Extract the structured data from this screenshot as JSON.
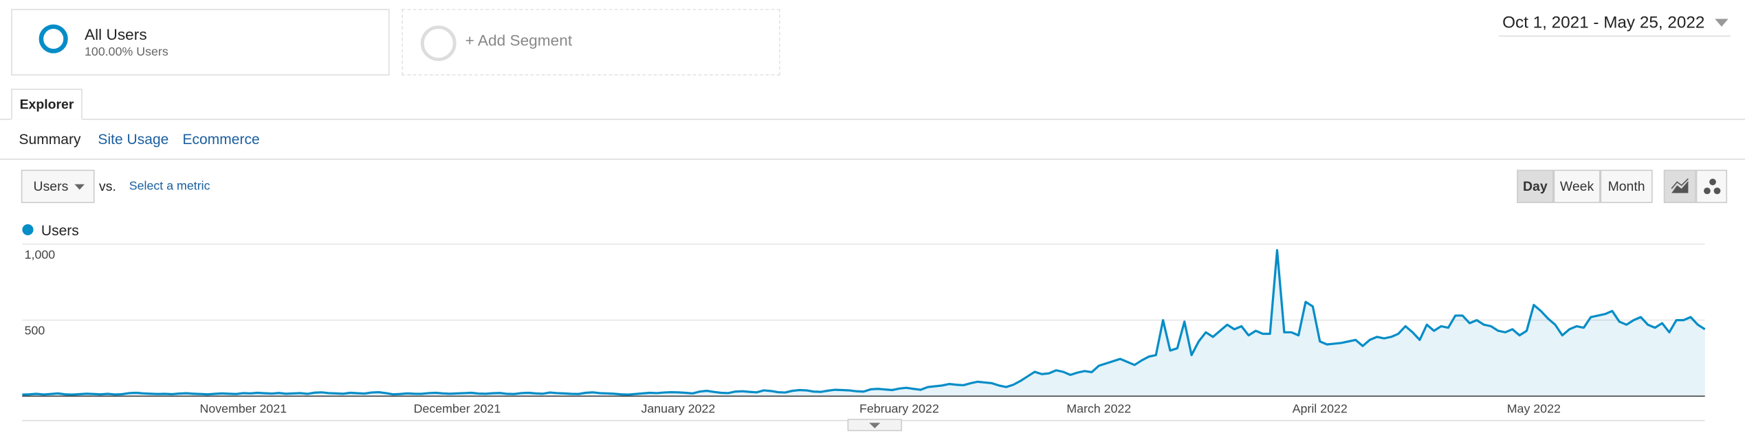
{
  "segments": {
    "active": {
      "name": "All Users",
      "detail": "100.00% Users"
    },
    "add": "+ Add Segment"
  },
  "date_range": "Oct 1, 2021 - May 25, 2022",
  "tab": "Explorer",
  "subtabs": [
    "Summary",
    "Site Usage",
    "Ecommerce"
  ],
  "metric": {
    "selected": "Users",
    "vs": "vs.",
    "select": "Select a metric"
  },
  "granularity": [
    "Day",
    "Week",
    "Month"
  ],
  "chart_data": {
    "type": "line",
    "categories": [
      null,
      null,
      null,
      null,
      null,
      null,
      null,
      null,
      null,
      null,
      null,
      null,
      null,
      null,
      null,
      null,
      null,
      null,
      null,
      null,
      null,
      null,
      null,
      null,
      null,
      null,
      null,
      null,
      null,
      null,
      null,
      "November 2021",
      null,
      null,
      null,
      null,
      null,
      null,
      null,
      null,
      null,
      null,
      null,
      null,
      null,
      null,
      null,
      null,
      null,
      null,
      null,
      null,
      null,
      null,
      null,
      null,
      null,
      null,
      null,
      null,
      null,
      "December 2021",
      null,
      null,
      null,
      null,
      null,
      null,
      null,
      null,
      null,
      null,
      null,
      null,
      null,
      null,
      null,
      null,
      null,
      null,
      null,
      null,
      null,
      null,
      null,
      null,
      null,
      null,
      null,
      null,
      null,
      null,
      "January 2022",
      null,
      null,
      null,
      null,
      null,
      null,
      null,
      null,
      null,
      null,
      null,
      null,
      null,
      null,
      null,
      null,
      null,
      null,
      null,
      null,
      null,
      null,
      null,
      null,
      null,
      null,
      null,
      null,
      null,
      null,
      "February 2022",
      null,
      null,
      null,
      null,
      null,
      null,
      null,
      null,
      null,
      null,
      null,
      null,
      null,
      null,
      null,
      null,
      null,
      null,
      null,
      null,
      null,
      null,
      null,
      null,
      null,
      null,
      null,
      "March 2022",
      null,
      null,
      null,
      null,
      null,
      null,
      null,
      null,
      null,
      null,
      null,
      null,
      null,
      null,
      null,
      null,
      null,
      null,
      null,
      null,
      null,
      null,
      null,
      null,
      null,
      null,
      null,
      null,
      null,
      null,
      "April 2022",
      null,
      null,
      null,
      null,
      null,
      null,
      null,
      null,
      null,
      null,
      null,
      null,
      null,
      null,
      null,
      null,
      null,
      null,
      null,
      null,
      null,
      null,
      null,
      null,
      null,
      null,
      null,
      null,
      null,
      "May 2022",
      null,
      null,
      null,
      null,
      null,
      null,
      null,
      null,
      null,
      null,
      null,
      null,
      null,
      null,
      null,
      null,
      null,
      null,
      null,
      null,
      null,
      null,
      null,
      null
    ],
    "series": [
      {
        "name": "Users",
        "color": "#058dc7",
        "values": [
          10,
          12,
          15,
          11,
          14,
          18,
          12,
          10,
          13,
          16,
          14,
          12,
          15,
          11,
          13,
          20,
          22,
          18,
          16,
          14,
          15,
          13,
          17,
          19,
          16,
          14,
          12,
          15,
          18,
          16,
          14,
          20,
          18,
          22,
          19,
          17,
          21,
          16,
          18,
          20,
          15,
          23,
          25,
          20,
          18,
          16,
          22,
          19,
          17,
          24,
          26,
          20,
          12,
          14,
          18,
          16,
          15,
          20,
          22,
          18,
          16,
          18,
          20,
          22,
          17,
          16,
          19,
          21,
          15,
          14,
          20,
          22,
          18,
          16,
          24,
          20,
          18,
          15,
          14,
          22,
          25,
          20,
          18,
          16,
          12,
          10,
          14,
          18,
          22,
          20,
          24,
          26,
          25,
          22,
          18,
          30,
          35,
          28,
          22,
          20,
          30,
          32,
          28,
          25,
          38,
          34,
          26,
          24,
          35,
          40,
          38,
          30,
          28,
          36,
          42,
          40,
          38,
          32,
          30,
          45,
          48,
          44,
          40,
          50,
          55,
          48,
          42,
          60,
          65,
          70,
          80,
          75,
          72,
          85,
          95,
          90,
          85,
          70,
          60,
          75,
          100,
          130,
          160,
          145,
          150,
          170,
          160,
          140,
          155,
          165,
          158,
          200,
          215,
          230,
          245,
          225,
          205,
          235,
          260,
          270,
          500,
          300,
          315,
          490,
          270,
          360,
          420,
          390,
          430,
          470,
          440,
          460,
          400,
          430,
          410,
          410,
          960,
          420,
          420,
          400,
          620,
          590,
          360,
          340,
          345,
          350,
          360,
          370,
          330,
          370,
          390,
          380,
          390,
          410,
          460,
          420,
          370,
          470,
          430,
          460,
          450,
          530,
          530,
          480,
          500,
          470,
          460,
          430,
          420,
          440,
          400,
          430,
          600,
          560,
          510,
          470,
          400,
          440,
          460,
          450,
          520,
          530,
          540,
          560,
          490,
          470,
          500,
          520,
          470,
          450,
          480,
          420,
          500,
          500,
          520,
          470,
          440
        ]
      }
    ],
    "ylim": [
      0,
      1000
    ],
    "yticks": [
      500,
      {
        "value": 1000,
        "label": "1,000"
      }
    ],
    "grid": true
  }
}
